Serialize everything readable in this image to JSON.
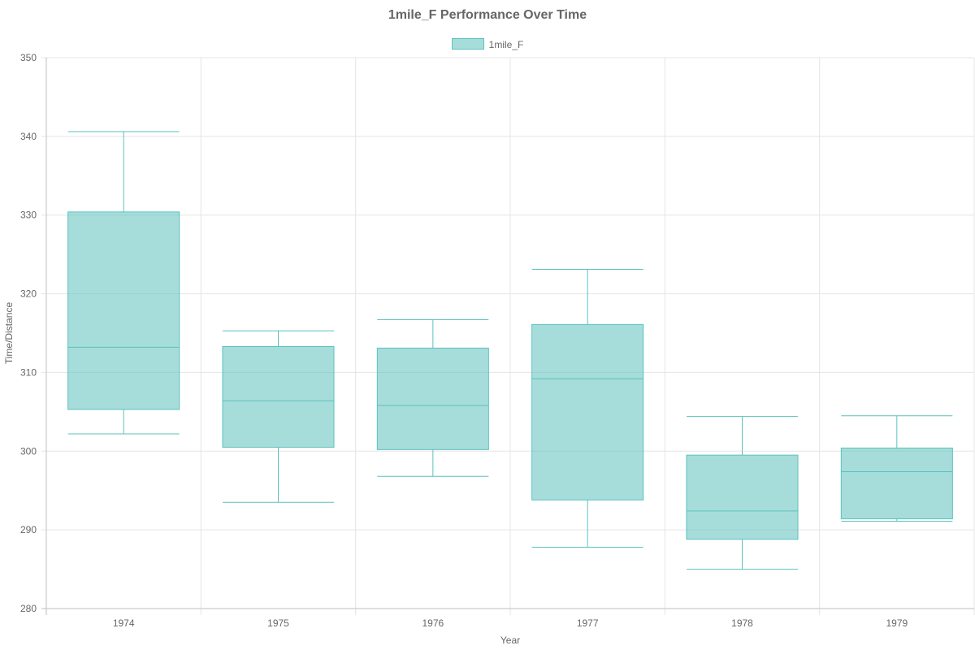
{
  "chart_data": {
    "type": "box",
    "title": "1mile_F Performance Over Time",
    "xlabel": "Year",
    "ylabel": "Time/Distance",
    "categories": [
      "1974",
      "1975",
      "1976",
      "1977",
      "1978",
      "1979"
    ],
    "ylim": [
      280,
      350
    ],
    "yticks": [
      280,
      290,
      300,
      310,
      320,
      330,
      340,
      350
    ],
    "grid": true,
    "legend_position": "top",
    "series": [
      {
        "name": "1mile_F",
        "color": "#5cc1bd",
        "fill": "rgba(92,193,189,0.55)",
        "boxes": [
          {
            "min": 302.2,
            "q1": 305.3,
            "median": 313.2,
            "q3": 330.4,
            "max": 340.6
          },
          {
            "min": 293.5,
            "q1": 300.5,
            "median": 306.4,
            "q3": 313.3,
            "max": 315.3
          },
          {
            "min": 296.8,
            "q1": 300.2,
            "median": 305.8,
            "q3": 313.1,
            "max": 316.7
          },
          {
            "min": 287.8,
            "q1": 293.8,
            "median": 309.2,
            "q3": 316.1,
            "max": 323.1
          },
          {
            "min": 285.0,
            "q1": 288.8,
            "median": 292.4,
            "q3": 299.5,
            "max": 304.4
          },
          {
            "min": 291.1,
            "q1": 291.4,
            "median": 297.4,
            "q3": 300.4,
            "max": 304.5
          }
        ]
      }
    ]
  }
}
